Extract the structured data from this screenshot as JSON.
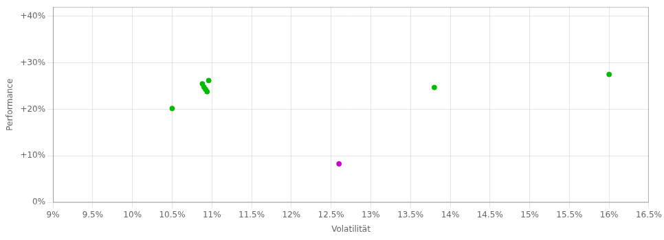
{
  "chart_data": {
    "type": "scatter",
    "xlabel": "Volatilität",
    "ylabel": "Performance",
    "xlim": [
      0.09,
      0.165
    ],
    "ylim": [
      0.0,
      0.42
    ],
    "xticks": [
      {
        "value": 0.09,
        "label": "9%"
      },
      {
        "value": 0.095,
        "label": "9.5%"
      },
      {
        "value": 0.1,
        "label": "10%"
      },
      {
        "value": 0.105,
        "label": "10.5%"
      },
      {
        "value": 0.11,
        "label": "11%"
      },
      {
        "value": 0.115,
        "label": "11.5%"
      },
      {
        "value": 0.12,
        "label": "12%"
      },
      {
        "value": 0.125,
        "label": "12.5%"
      },
      {
        "value": 0.13,
        "label": "13%"
      },
      {
        "value": 0.135,
        "label": "13.5%"
      },
      {
        "value": 0.14,
        "label": "14%"
      },
      {
        "value": 0.145,
        "label": "14.5%"
      },
      {
        "value": 0.15,
        "label": "15%"
      },
      {
        "value": 0.155,
        "label": "15.5%"
      },
      {
        "value": 0.16,
        "label": "16%"
      },
      {
        "value": 0.165,
        "label": "16.5%"
      }
    ],
    "yticks": [
      {
        "value": 0.0,
        "label": "0%"
      },
      {
        "value": 0.1,
        "label": "+10%"
      },
      {
        "value": 0.2,
        "label": "+20%"
      },
      {
        "value": 0.3,
        "label": "+30%"
      },
      {
        "value": 0.4,
        "label": "+40%"
      }
    ],
    "grid": true,
    "series": [
      {
        "color": "#00bb00",
        "x": [
          0.105,
          0.1088,
          0.109,
          0.1092,
          0.1094,
          0.1096,
          0.138,
          0.16
        ],
        "values": [
          0.202,
          0.255,
          0.248,
          0.243,
          0.238,
          0.262,
          0.247,
          0.275
        ]
      },
      {
        "color": "#cc00cc",
        "x": [
          0.126
        ],
        "values": [
          0.083
        ]
      }
    ]
  }
}
